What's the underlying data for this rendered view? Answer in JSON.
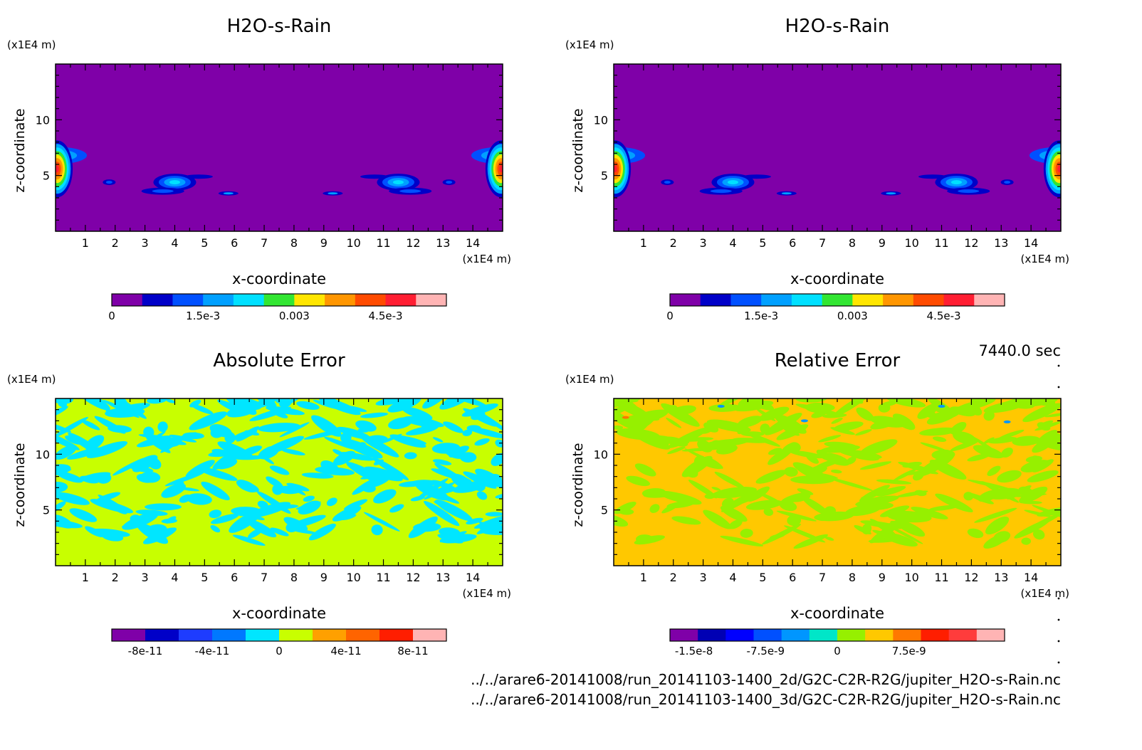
{
  "time_label": "7440.0 sec",
  "files": [
    "../../arare6-20141008/run_20141103-1400_2d/G2C-C2R-R2G/jupiter_H2O-s-Rain.nc",
    "../../arare6-20141008/run_20141103-1400_3d/G2C-C2R-R2G/jupiter_H2O-s-Rain.nc"
  ],
  "chart_data": [
    {
      "type": "heatmap",
      "title": "H2O-s-Rain",
      "xlabel": "x-coordinate",
      "ylabel": "z-coordinate",
      "x_unit": "(x1E4 m)",
      "y_unit": "(x1E4 m)",
      "xlim": [
        0,
        15
      ],
      "ylim": [
        0,
        15
      ],
      "x_ticks": [
        "1",
        "2",
        "3",
        "4",
        "5",
        "6",
        "7",
        "8",
        "9",
        "10",
        "11",
        "12",
        "13",
        "14"
      ],
      "y_ticks": [
        "5",
        "10"
      ],
      "background_color": "#7f00a8",
      "colorbar": {
        "colors": [
          "#7f00a8",
          "#0000c8",
          "#0050ff",
          "#00a0ff",
          "#00e0ff",
          "#32e632",
          "#ffe600",
          "#ff9600",
          "#ff4b00",
          "#ff1e32",
          "#ffb4b4"
        ],
        "labels": [
          "0",
          "1.5e-3",
          "0.003",
          "4.5e-3"
        ],
        "label_positions": [
          0,
          0.0015,
          0.003,
          0.0045
        ],
        "range": [
          0,
          0.0055
        ]
      }
    },
    {
      "type": "heatmap",
      "title": "H2O-s-Rain",
      "xlabel": "x-coordinate",
      "ylabel": "z-coordinate",
      "x_unit": "(x1E4 m)",
      "y_unit": "(x1E4 m)",
      "xlim": [
        0,
        15
      ],
      "ylim": [
        0,
        15
      ],
      "x_ticks": [
        "1",
        "2",
        "3",
        "4",
        "5",
        "6",
        "7",
        "8",
        "9",
        "10",
        "11",
        "12",
        "13",
        "14"
      ],
      "y_ticks": [
        "5",
        "10"
      ],
      "background_color": "#7f00a8",
      "colorbar": {
        "colors": [
          "#7f00a8",
          "#0000c8",
          "#0050ff",
          "#00a0ff",
          "#00e0ff",
          "#32e632",
          "#ffe600",
          "#ff9600",
          "#ff4b00",
          "#ff1e32",
          "#ffb4b4"
        ],
        "labels": [
          "0",
          "1.5e-3",
          "0.003",
          "4.5e-3"
        ],
        "label_positions": [
          0,
          0.0015,
          0.003,
          0.0045
        ],
        "range": [
          0,
          0.0055
        ]
      }
    },
    {
      "type": "heatmap",
      "title": "Absolute Error",
      "xlabel": "x-coordinate",
      "ylabel": "z-coordinate",
      "x_unit": "(x1E4 m)",
      "y_unit": "(x1E4 m)",
      "xlim": [
        0,
        15
      ],
      "ylim": [
        0,
        15
      ],
      "x_ticks": [
        "1",
        "2",
        "3",
        "4",
        "5",
        "6",
        "7",
        "8",
        "9",
        "10",
        "11",
        "12",
        "13",
        "14"
      ],
      "y_ticks": [
        "5",
        "10"
      ],
      "background_color": "#c8ff00",
      "pattern_color": "#00e6ff",
      "colorbar": {
        "colors": [
          "#7f00a8",
          "#0000c8",
          "#1e3cff",
          "#0078ff",
          "#00e6ff",
          "#c8ff00",
          "#ffa000",
          "#ff6400",
          "#ff1e00",
          "#ffb4b4"
        ],
        "labels": [
          "-8e-11",
          "-4e-11",
          "0",
          "4e-11",
          "8e-11"
        ],
        "label_positions": [
          -8e-11,
          -4e-11,
          0,
          4e-11,
          8e-11
        ],
        "range": [
          -1e-10,
          1e-10
        ]
      }
    },
    {
      "type": "heatmap",
      "title": "Relative Error",
      "xlabel": "x-coordinate",
      "ylabel": "z-coordinate",
      "x_unit": "(x1E4 m)",
      "y_unit": "(x1E4 m)",
      "xlim": [
        0,
        15
      ],
      "ylim": [
        0,
        15
      ],
      "x_ticks": [
        "1",
        "2",
        "3",
        "4",
        "5",
        "6",
        "7",
        "8",
        "9",
        "10",
        "11",
        "12",
        "13",
        "14"
      ],
      "y_ticks": [
        "5",
        "10"
      ],
      "background_color": "#ffc800",
      "pattern_color": "#96f000",
      "colorbar": {
        "colors": [
          "#7f00a8",
          "#0000b4",
          "#0000ff",
          "#0050ff",
          "#0096ff",
          "#00e6c8",
          "#96f000",
          "#ffc800",
          "#ff7800",
          "#ff1e00",
          "#ff3c3c",
          "#ffb4b4"
        ],
        "labels": [
          "-1.5e-8",
          "-7.5e-9",
          "0",
          "7.5e-9"
        ],
        "label_positions": [
          -1.5e-08,
          -7.5e-09,
          0,
          7.5e-09
        ],
        "range": [
          -1.75e-08,
          1.75e-08
        ]
      }
    }
  ]
}
